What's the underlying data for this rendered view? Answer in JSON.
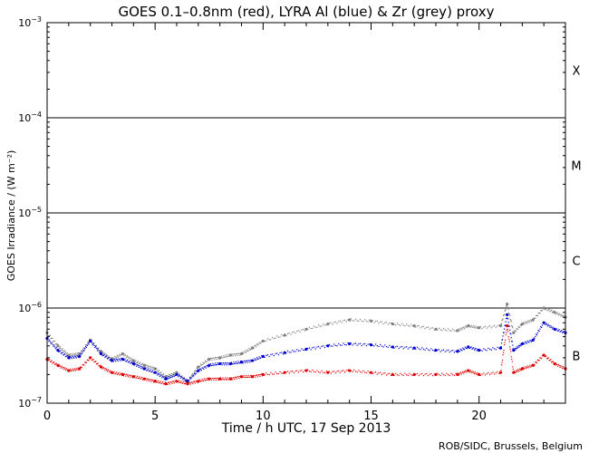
{
  "chart_data": {
    "type": "scatter",
    "title": "GOES 0.1–0.8nm (red), LYRA Al (blue) & Zr (grey) proxy",
    "xlabel": "Time / h UTC, 17 Sep 2013",
    "ylabel": "GOES Irradiance / (W m⁻²)",
    "credit": "ROB/SIDC, Brussels, Belgium",
    "xlim": [
      0,
      24
    ],
    "ylim": [
      1e-07,
      0.001
    ],
    "yscale": "log",
    "xticks": [
      0,
      5,
      10,
      15,
      20
    ],
    "xtick_labels": [
      "0",
      "5",
      "10",
      "15",
      "20"
    ],
    "yticks": [
      {
        "base": "10",
        "exp": "−3",
        "value": 0.001
      },
      {
        "base": "10",
        "exp": "−4",
        "value": 0.0001
      },
      {
        "base": "10",
        "exp": "−5",
        "value": 1e-05
      },
      {
        "base": "10",
        "exp": "−6",
        "value": 1e-06
      },
      {
        "base": "10",
        "exp": "−7",
        "value": 1e-07
      }
    ],
    "class_lines": [
      0.0001,
      1e-05,
      1e-06
    ],
    "flare_classes": [
      {
        "label": "X",
        "value": 0.0003162
      },
      {
        "label": "M",
        "value": 3.162e-05
      },
      {
        "label": "C",
        "value": 3.162e-06
      },
      {
        "label": "B",
        "value": 3.162e-07
      }
    ],
    "series": [
      {
        "color": "#808080",
        "x": [
          0,
          0.5,
          1,
          1.5,
          2,
          2.5,
          3,
          3.5,
          4,
          4.5,
          5,
          5.5,
          6,
          6.5,
          7,
          7.5,
          8,
          8.5,
          9,
          9.5,
          10,
          11,
          12,
          13,
          14,
          15,
          16,
          17,
          18,
          19,
          19.5,
          20,
          21,
          21.3,
          21.6,
          22,
          22.5,
          23,
          23.5,
          24
        ],
        "y": [
          5.5e-07,
          4e-07,
          3.2e-07,
          3.3e-07,
          4.6e-07,
          3.5e-07,
          2.9e-07,
          3.3e-07,
          2.8e-07,
          2.5e-07,
          2.3e-07,
          1.9e-07,
          2.1e-07,
          1.7e-07,
          2.4e-07,
          2.9e-07,
          3e-07,
          3.2e-07,
          3.3e-07,
          3.8e-07,
          4.5e-07,
          5.2e-07,
          6e-07,
          6.8e-07,
          7.5e-07,
          7.3e-07,
          6.8e-07,
          6.5e-07,
          6e-07,
          5.8e-07,
          6.5e-07,
          6.2e-07,
          6.5e-07,
          1.1e-06,
          5.5e-07,
          6.8e-07,
          7.5e-07,
          1e-06,
          9e-07,
          8e-07
        ]
      },
      {
        "color": "#0000cc",
        "x": [
          0,
          0.5,
          1,
          1.5,
          2,
          2.5,
          3,
          3.5,
          4,
          4.5,
          5,
          5.5,
          6,
          6.5,
          7,
          7.5,
          8,
          8.5,
          9,
          9.5,
          10,
          11,
          12,
          13,
          14,
          15,
          16,
          17,
          18,
          19,
          19.5,
          20,
          21,
          21.3,
          21.6,
          22,
          22.5,
          23,
          23.5,
          24
        ],
        "y": [
          4.8e-07,
          3.6e-07,
          3e-07,
          3.1e-07,
          4.5e-07,
          3.3e-07,
          2.8e-07,
          2.9e-07,
          2.6e-07,
          2.3e-07,
          2.1e-07,
          1.8e-07,
          2e-07,
          1.7e-07,
          2.2e-07,
          2.5e-07,
          2.6e-07,
          2.6e-07,
          2.7e-07,
          2.8e-07,
          3.1e-07,
          3.4e-07,
          3.7e-07,
          4e-07,
          4.2e-07,
          4.1e-07,
          3.9e-07,
          3.8e-07,
          3.6e-07,
          3.5e-07,
          3.9e-07,
          3.6e-07,
          3.8e-07,
          8.5e-07,
          3.6e-07,
          4.2e-07,
          4.6e-07,
          7e-07,
          6e-07,
          5.5e-07
        ]
      },
      {
        "color": "#dd0000",
        "x": [
          0,
          0.5,
          1,
          1.5,
          2,
          2.5,
          3,
          3.5,
          4,
          4.5,
          5,
          5.5,
          6,
          6.5,
          7,
          7.5,
          8,
          8.5,
          9,
          9.5,
          10,
          11,
          12,
          13,
          14,
          15,
          16,
          17,
          18,
          19,
          19.5,
          20,
          21,
          21.3,
          21.6,
          22,
          22.5,
          23,
          23.5,
          24
        ],
        "y": [
          2.9e-07,
          2.5e-07,
          2.2e-07,
          2.3e-07,
          3e-07,
          2.4e-07,
          2.1e-07,
          2e-07,
          1.9e-07,
          1.8e-07,
          1.7e-07,
          1.6e-07,
          1.7e-07,
          1.6e-07,
          1.7e-07,
          1.8e-07,
          1.8e-07,
          1.8e-07,
          1.9e-07,
          1.9e-07,
          2e-07,
          2.1e-07,
          2.2e-07,
          2.1e-07,
          2.2e-07,
          2.1e-07,
          2e-07,
          2e-07,
          2e-07,
          2e-07,
          2.2e-07,
          2e-07,
          2.1e-07,
          6.5e-07,
          2.1e-07,
          2.3e-07,
          2.5e-07,
          3.2e-07,
          2.6e-07,
          2.3e-07
        ]
      }
    ]
  }
}
